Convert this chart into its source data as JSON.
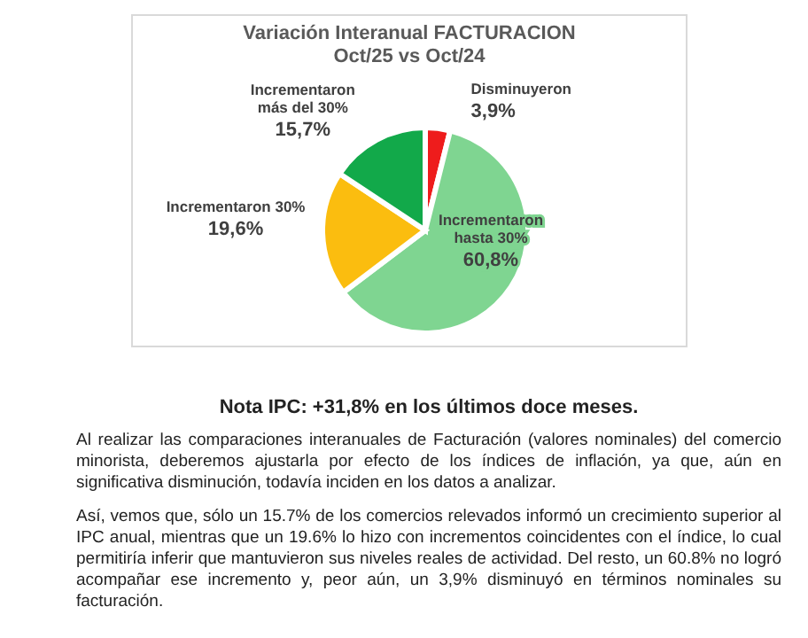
{
  "chart_data": {
    "type": "pie",
    "title": "Variación Interanual FACTURACION\nOct/25 vs Oct/24",
    "categories": [
      "Disminuyeron",
      "Incrementaron hasta 30%",
      "Incrementaron 30%",
      "Incrementaron más del 30%"
    ],
    "values": [
      3.9,
      60.8,
      19.6,
      15.7
    ],
    "colors": [
      "#ee1c1c",
      "#7fd591",
      "#fbbd0f",
      "#12a94a"
    ],
    "value_labels": [
      "3,9%",
      "60,8%",
      "19,6%",
      "15,7%"
    ],
    "legend": false,
    "annotations": [
      "Nota IPC: +31,8% en los últimos doce meses.",
      "Al realizar las comparaciones interanuales de Facturación (valores nominales) del comercio minorista, deberemos ajustarla por efecto de los índices de inflación, ya que, aún en significativa disminución, todavía inciden en los datos a analizar.",
      "Así, vemos que, sólo un 15.7% de los comercios relevados informó un crecimiento superior al IPC anual, mientras que un 19.6% lo hizo con incrementos coincidentes con el índice, lo cual permitiría inferir que mantuvieron sus niveles reales de actividad.  Del resto, un 60.8% no logró acompañar ese incremento y, peor aún, un 3,9% disminuyó en términos nominales su facturación."
    ]
  }
}
